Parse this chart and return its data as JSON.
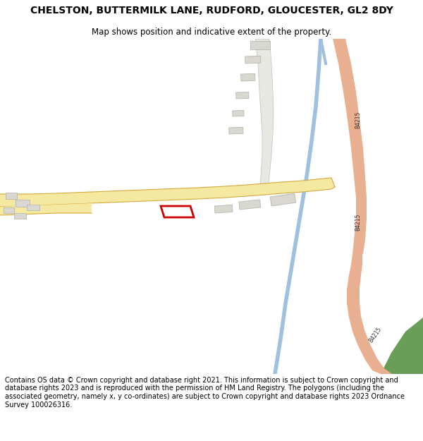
{
  "title": "CHELSTON, BUTTERMILK LANE, RUDFORD, GLOUCESTER, GL2 8DY",
  "subtitle": "Map shows position and indicative extent of the property.",
  "footer": "Contains OS data © Crown copyright and database right 2021. This information is subject to Crown copyright and database rights 2023 and is reproduced with the permission of HM Land Registry. The polygons (including the associated geometry, namely x, y co-ordinates) are subject to Crown copyright and database rights 2023 Ordnance Survey 100026316.",
  "bg_color": "#ffffff",
  "map_bg": "#f8f8f4",
  "road_color_main": "#f5e8a0",
  "road_color_main_outline": "#d4aa40",
  "road_color_b": "#e8b090",
  "building_color": "#d8d8d0",
  "building_outline": "#b8b8b0",
  "plot_outline": "#cc0000",
  "water_color": "#a0c0e0",
  "green_color": "#6a9e58",
  "title_fontsize": 10,
  "subtitle_fontsize": 8.5,
  "footer_fontsize": 7.0
}
